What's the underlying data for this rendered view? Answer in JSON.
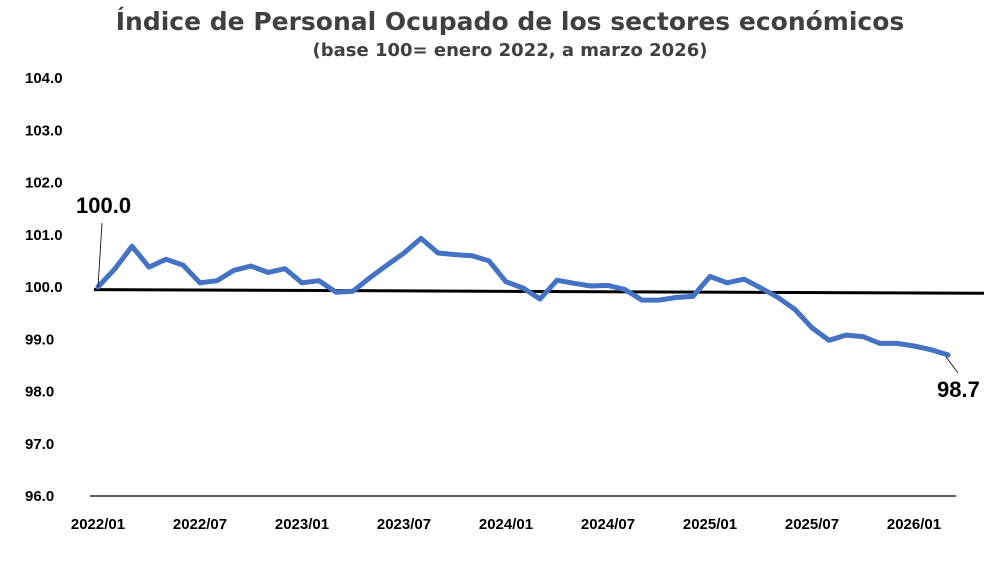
{
  "chart_data": {
    "type": "line",
    "title": "Índice de Personal Ocupado de los sectores económicos",
    "subtitle": "(base 100= enero 2022, a marzo 2026)",
    "xlabel": "",
    "ylabel": "",
    "ylim": [
      96.0,
      104.0
    ],
    "y_ticks": [
      "96.0",
      "97.0",
      "98.0",
      "99.0",
      "100.0",
      "101.0",
      "102.0",
      "103.0",
      "104.0"
    ],
    "x_ticks": [
      {
        "label": "2022/01",
        "index": 0
      },
      {
        "label": "2022/07",
        "index": 6
      },
      {
        "label": "2023/01",
        "index": 12
      },
      {
        "label": "2023/07",
        "index": 18
      },
      {
        "label": "2024/01",
        "index": 24
      },
      {
        "label": "2024/07",
        "index": 30
      },
      {
        "label": "2025/01",
        "index": 36
      },
      {
        "label": "2025/07",
        "index": 42
      },
      {
        "label": "2026/01",
        "index": 48
      }
    ],
    "grid": false,
    "legend": "none",
    "series": [
      {
        "color": "#4472C4",
        "values": [
          100.0,
          100.35,
          100.78,
          100.38,
          100.53,
          100.42,
          100.08,
          100.12,
          100.32,
          100.4,
          100.28,
          100.35,
          100.08,
          100.12,
          99.9,
          99.92,
          100.18,
          100.42,
          100.65,
          100.93,
          100.65,
          100.62,
          100.6,
          100.5,
          100.1,
          99.98,
          99.77,
          100.13,
          100.07,
          100.02,
          100.03,
          99.95,
          99.75,
          99.75,
          99.8,
          99.82,
          100.2,
          100.08,
          100.15,
          99.98,
          99.8,
          99.57,
          99.22,
          98.98,
          99.08,
          99.05,
          98.92,
          98.92,
          98.87,
          98.8,
          98.7
        ]
      }
    ],
    "reference_lines": [
      {
        "color": "#000000",
        "start_value": 99.95,
        "end_value": 99.88
      }
    ],
    "annotations": [
      {
        "text": "100.0",
        "index": 0,
        "value": 100.0
      },
      {
        "text": "98.7",
        "index": 50,
        "value": 98.7
      }
    ]
  }
}
